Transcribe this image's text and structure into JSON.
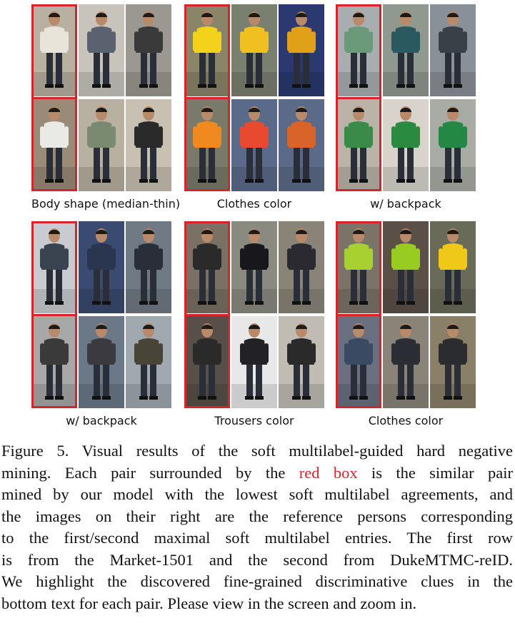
{
  "figure": {
    "groups": [
      {
        "label": "Body shape (median-thin)"
      },
      {
        "label": "Clothes color"
      },
      {
        "label": "w/ backpack"
      },
      {
        "label": "w/ backpack"
      },
      {
        "label": "Trousers color"
      },
      {
        "label": "Clothes color"
      }
    ]
  },
  "caption": {
    "line1_a": "Figure 5. Visual results of the soft multilabel-guided hard negative",
    "line2_a": "mining. Each pair surrounded by the ",
    "line2_red": "red box",
    "line2_b": " is the similar pair",
    "line3": "mined by our model with the lowest soft multilabel agreements, and",
    "line4": "the images on their right are the reference persons corresponding",
    "line5": "to the first/second maximal soft multilabel entries. The first row",
    "line6": "is from the Market-1501 and the second from DukeMTMC-reID.",
    "line7": "We highlight the discovered fine-grained discriminative clues in the",
    "line8": "bottom text for each pair. Please view in the screen and zoom in."
  },
  "colors": {
    "red_box": "#d8232a",
    "groups": [
      [
        "#e8e4da",
        "#5a6270",
        "#3a3a3a",
        "#e9e9e6",
        "#7a8a70",
        "#2a2a2a"
      ],
      [
        "#f2d21a",
        "#f0c020",
        "#e0a018",
        "#f08a20",
        "#e84a30",
        "#d8642a"
      ],
      [
        "#6a9a7a",
        "#2a5a60",
        "#3a4048",
        "#3a8a4a",
        "#2a8a40",
        "#228844"
      ],
      [
        "#3a4450",
        "#2a3650",
        "#2a2e38",
        "#3a3a3a",
        "#3a3a40",
        "#4a4438"
      ],
      [
        "#2a2a2a",
        "#18181c",
        "#2a2a30",
        "#2a2a2a",
        "#222226",
        "#2a2a2a"
      ],
      [
        "#a8d030",
        "#98cc20",
        "#f0c818",
        "#3a4a62",
        "#2a2e34",
        "#2a2c30"
      ]
    ],
    "backgrounds": [
      [
        "#b8b0a0",
        "#c8c4bc",
        "#9a9890",
        "#9a8a78",
        "#b8b0a0",
        "#c8c0b0"
      ],
      [
        "#8a8468",
        "#7a8070",
        "#2a3a70",
        "#7a7a6a",
        "#5a6a8a",
        "#5a6a88"
      ],
      [
        "#a8aeb0",
        "#909890",
        "#8a9098",
        "#bab4a8",
        "#d8d4cc",
        "#a8aca4"
      ],
      [
        "#c8ccd0",
        "#3a4a70",
        "#707a84",
        "#a8a8a8",
        "#6a7888",
        "#a0a8b0"
      ],
      [
        "#7a7064",
        "#8a8a80",
        "#8a8478",
        "#585048",
        "#e8e8e8",
        "#c0bcb4"
      ],
      [
        "#7a7468",
        "#5a5048",
        "#6a6a58",
        "#6a7080",
        "#8a8478",
        "#8a8068"
      ]
    ]
  }
}
